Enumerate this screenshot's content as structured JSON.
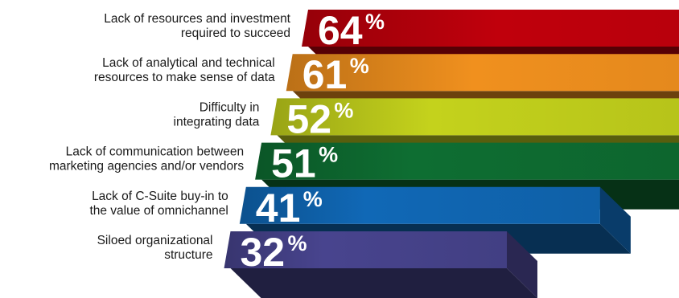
{
  "chart_data": {
    "type": "bar",
    "orientation": "horizontal",
    "style": "3d-staircase",
    "categories": [
      [
        "Lack of resources and investment",
        "required to succeed"
      ],
      [
        "Lack of analytical and technical",
        "resources to make sense of data"
      ],
      [
        "Difficulty in",
        "integrating data"
      ],
      [
        "Lack of communication between",
        "marketing agencies and/or vendors"
      ],
      [
        "Lack of C-Suite buy-in to",
        "the value of omnichannel"
      ],
      [
        "Siloed organizational",
        "structure"
      ]
    ],
    "values": [
      64,
      61,
      52,
      51,
      41,
      32
    ],
    "value_labels": [
      "64",
      "61",
      "52",
      "51",
      "41",
      "32"
    ],
    "value_suffix": "%",
    "colors": [
      "#c0000c",
      "#f0901e",
      "#c4d21c",
      "#0e6e32",
      "#1068b6",
      "#48448e"
    ],
    "legend": "none",
    "grid": false
  }
}
